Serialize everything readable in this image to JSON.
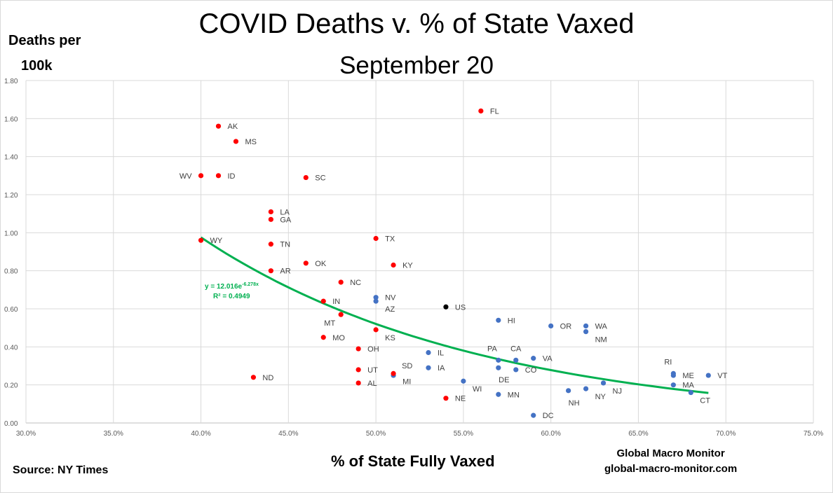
{
  "chart_data": {
    "type": "scatter",
    "title": "COVID Deaths  v. % of State Vaxed",
    "subtitle": "September 20",
    "xlabel": "% of State Fully Vaxed",
    "ylabel_lines": [
      "Deaths per",
      "100k"
    ],
    "xlim": [
      0.3,
      0.75
    ],
    "ylim": [
      0.0,
      1.8
    ],
    "x_ticks": [
      0.3,
      0.35,
      0.4,
      0.45,
      0.5,
      0.55,
      0.6,
      0.65,
      0.7,
      0.75
    ],
    "x_tick_labels": [
      "30.0%",
      "35.0%",
      "40.0%",
      "45.0%",
      "50.0%",
      "55.0%",
      "60.0%",
      "65.0%",
      "70.0%",
      "75.0%"
    ],
    "y_ticks": [
      0.0,
      0.2,
      0.4,
      0.6,
      0.8,
      1.0,
      1.2,
      1.4,
      1.6,
      1.8
    ],
    "y_tick_labels": [
      "0.00",
      "0.20",
      "0.40",
      "0.60",
      "0.80",
      "1.00",
      "1.20",
      "1.40",
      "1.60",
      "1.80"
    ],
    "grid": true,
    "colors": {
      "red_states": "#ff0000",
      "blue_states": "#4472c4",
      "us": "#000000",
      "trend": "#00b050"
    },
    "points": [
      {
        "label": "FL",
        "x": 0.56,
        "y": 1.64,
        "group": "red",
        "label_pos": "right"
      },
      {
        "label": "AK",
        "x": 0.41,
        "y": 1.56,
        "group": "red",
        "label_pos": "right"
      },
      {
        "label": "MS",
        "x": 0.42,
        "y": 1.48,
        "group": "red",
        "label_pos": "right"
      },
      {
        "label": "WV",
        "x": 0.4,
        "y": 1.3,
        "group": "red",
        "label_pos": "left"
      },
      {
        "label": "ID",
        "x": 0.41,
        "y": 1.3,
        "group": "red",
        "label_pos": "right"
      },
      {
        "label": "SC",
        "x": 0.46,
        "y": 1.29,
        "group": "red",
        "label_pos": "right"
      },
      {
        "label": "LA",
        "x": 0.44,
        "y": 1.11,
        "group": "red",
        "label_pos": "right"
      },
      {
        "label": "GA",
        "x": 0.44,
        "y": 1.07,
        "group": "red",
        "label_pos": "right"
      },
      {
        "label": "TX",
        "x": 0.5,
        "y": 0.97,
        "group": "red",
        "label_pos": "right"
      },
      {
        "label": "WY",
        "x": 0.4,
        "y": 0.96,
        "group": "red",
        "label_pos": "right"
      },
      {
        "label": "TN",
        "x": 0.44,
        "y": 0.94,
        "group": "red",
        "label_pos": "right"
      },
      {
        "label": "OK",
        "x": 0.46,
        "y": 0.84,
        "group": "red",
        "label_pos": "right"
      },
      {
        "label": "KY",
        "x": 0.51,
        "y": 0.83,
        "group": "red",
        "label_pos": "right"
      },
      {
        "label": "AR",
        "x": 0.44,
        "y": 0.8,
        "group": "red",
        "label_pos": "right"
      },
      {
        "label": "NC",
        "x": 0.48,
        "y": 0.74,
        "group": "red",
        "label_pos": "right"
      },
      {
        "label": "IN",
        "x": 0.47,
        "y": 0.64,
        "group": "red",
        "label_pos": "right"
      },
      {
        "label": "MT",
        "x": 0.48,
        "y": 0.57,
        "group": "red",
        "label_pos": "below-left"
      },
      {
        "label": "KS",
        "x": 0.5,
        "y": 0.49,
        "group": "red",
        "label_pos": "below-right"
      },
      {
        "label": "MO",
        "x": 0.47,
        "y": 0.45,
        "group": "red",
        "label_pos": "right"
      },
      {
        "label": "OH",
        "x": 0.49,
        "y": 0.39,
        "group": "red",
        "label_pos": "right"
      },
      {
        "label": "UT",
        "x": 0.49,
        "y": 0.28,
        "group": "red",
        "label_pos": "right"
      },
      {
        "label": "SD",
        "x": 0.51,
        "y": 0.25,
        "group": "blue",
        "label_pos": "above-right"
      },
      {
        "label": "MI",
        "x": 0.51,
        "y": 0.26,
        "group": "red",
        "label_pos": "below-right"
      },
      {
        "label": "ND",
        "x": 0.43,
        "y": 0.24,
        "group": "red",
        "label_pos": "right"
      },
      {
        "label": "AL",
        "x": 0.49,
        "y": 0.21,
        "group": "red",
        "label_pos": "right"
      },
      {
        "label": "NE",
        "x": 0.54,
        "y": 0.13,
        "group": "red",
        "label_pos": "right"
      },
      {
        "label": "NV",
        "x": 0.5,
        "y": 0.66,
        "group": "blue",
        "label_pos": "right"
      },
      {
        "label": "AZ",
        "x": 0.5,
        "y": 0.64,
        "group": "blue",
        "label_pos": "below-right"
      },
      {
        "label": "US",
        "x": 0.54,
        "y": 0.61,
        "group": "us",
        "label_pos": "right"
      },
      {
        "label": "HI",
        "x": 0.57,
        "y": 0.54,
        "group": "blue",
        "label_pos": "right"
      },
      {
        "label": "OR",
        "x": 0.6,
        "y": 0.51,
        "group": "blue",
        "label_pos": "right"
      },
      {
        "label": "WA",
        "x": 0.62,
        "y": 0.51,
        "group": "blue",
        "label_pos": "right"
      },
      {
        "label": "NM",
        "x": 0.62,
        "y": 0.48,
        "group": "blue",
        "label_pos": "below-right"
      },
      {
        "label": "IL",
        "x": 0.53,
        "y": 0.37,
        "group": "blue",
        "label_pos": "right"
      },
      {
        "label": "VA",
        "x": 0.59,
        "y": 0.34,
        "group": "blue",
        "label_pos": "right"
      },
      {
        "label": "PA",
        "x": 0.57,
        "y": 0.33,
        "group": "blue",
        "label_pos": "above-left"
      },
      {
        "label": "CA",
        "x": 0.58,
        "y": 0.33,
        "group": "blue",
        "label_pos": "above"
      },
      {
        "label": "IA",
        "x": 0.53,
        "y": 0.29,
        "group": "blue",
        "label_pos": "right"
      },
      {
        "label": "DE",
        "x": 0.57,
        "y": 0.29,
        "group": "blue",
        "label_pos": "below"
      },
      {
        "label": "CO",
        "x": 0.58,
        "y": 0.28,
        "group": "blue",
        "label_pos": "right"
      },
      {
        "label": "RI",
        "x": 0.67,
        "y": 0.26,
        "group": "blue",
        "label_pos": "above-left"
      },
      {
        "label": "ME",
        "x": 0.67,
        "y": 0.25,
        "group": "blue",
        "label_pos": "right"
      },
      {
        "label": "VT",
        "x": 0.69,
        "y": 0.25,
        "group": "blue",
        "label_pos": "right"
      },
      {
        "label": "WI",
        "x": 0.55,
        "y": 0.22,
        "group": "blue",
        "label_pos": "below-right"
      },
      {
        "label": "NJ",
        "x": 0.63,
        "y": 0.21,
        "group": "blue",
        "label_pos": "below-right"
      },
      {
        "label": "MA",
        "x": 0.67,
        "y": 0.2,
        "group": "blue",
        "label_pos": "right"
      },
      {
        "label": "NY",
        "x": 0.62,
        "y": 0.18,
        "group": "blue",
        "label_pos": "below-right"
      },
      {
        "label": "NH",
        "x": 0.61,
        "y": 0.17,
        "group": "blue",
        "label_pos": "below"
      },
      {
        "label": "CT",
        "x": 0.68,
        "y": 0.16,
        "group": "blue",
        "label_pos": "below-right"
      },
      {
        "label": "MN",
        "x": 0.57,
        "y": 0.15,
        "group": "blue",
        "label_pos": "right"
      },
      {
        "label": "DC",
        "x": 0.59,
        "y": 0.04,
        "group": "blue",
        "label_pos": "right"
      }
    ],
    "trendline": {
      "type": "exponential",
      "a": 12.016,
      "b": -6.278,
      "x_range": [
        0.4,
        0.69
      ],
      "equation_label": "y = 12.016e",
      "equation_exponent": "-6.278x",
      "r2_label": "R² = 0.4949"
    }
  },
  "annotations": {
    "source": "Source:  NY Times",
    "brand_name": "Global Macro Monitor",
    "brand_url": "global-macro-monitor.com"
  }
}
